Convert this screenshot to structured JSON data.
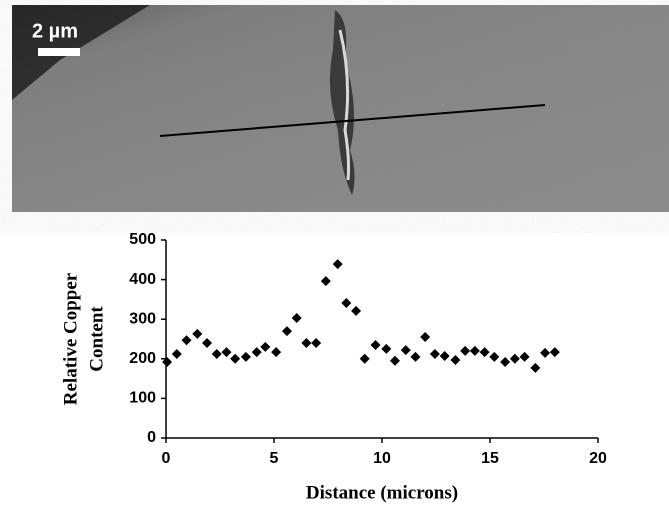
{
  "image": {
    "scale_label": "2 µm"
  },
  "chart_data": {
    "type": "scatter",
    "xlabel": "Distance (microns)",
    "ylabel": [
      "Relative Copper",
      "Content"
    ],
    "x": [
      0.05,
      0.5,
      0.95,
      1.45,
      1.9,
      2.35,
      2.8,
      3.2,
      3.7,
      4.2,
      4.6,
      5.1,
      5.6,
      6.05,
      6.5,
      6.95,
      7.4,
      7.95,
      8.35,
      8.8,
      9.2,
      9.7,
      10.2,
      10.6,
      11.1,
      11.55,
      12.0,
      12.45,
      12.9,
      13.4,
      13.85,
      14.3,
      14.75,
      15.2,
      15.7,
      16.15,
      16.6,
      17.1,
      17.55,
      18.0
    ],
    "values": [
      192,
      212,
      247,
      263,
      240,
      212,
      217,
      200,
      205,
      217,
      230,
      217,
      270,
      303,
      240,
      240,
      396,
      439,
      341,
      321,
      200,
      235,
      225,
      195,
      222,
      205,
      255,
      212,
      207,
      197,
      220,
      220,
      217,
      205,
      192,
      200,
      205,
      177,
      215,
      217
    ],
    "color": "#000000",
    "xlim": [
      0,
      20
    ],
    "xticks": [
      0,
      5,
      10,
      15,
      20
    ],
    "ylim": [
      0,
      500
    ],
    "yticks": [
      0,
      100,
      200,
      300,
      400,
      500
    ]
  }
}
